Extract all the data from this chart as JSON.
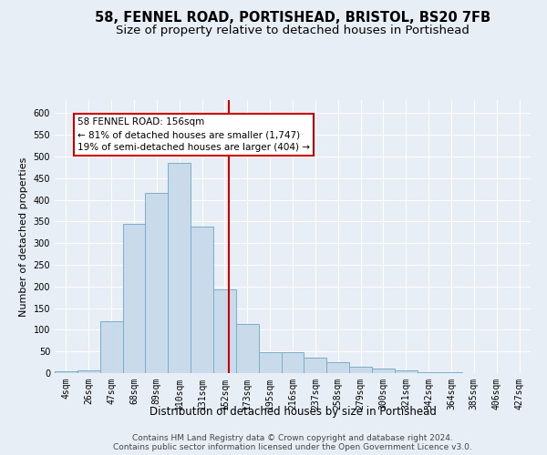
{
  "title1": "58, FENNEL ROAD, PORTISHEAD, BRISTOL, BS20 7FB",
  "title2": "Size of property relative to detached houses in Portishead",
  "xlabel": "Distribution of detached houses by size in Portishead",
  "ylabel": "Number of detached properties",
  "categories": [
    "4sqm",
    "26sqm",
    "47sqm",
    "68sqm",
    "89sqm",
    "110sqm",
    "131sqm",
    "152sqm",
    "173sqm",
    "195sqm",
    "216sqm",
    "237sqm",
    "258sqm",
    "279sqm",
    "300sqm",
    "321sqm",
    "342sqm",
    "364sqm",
    "385sqm",
    "406sqm",
    "427sqm"
  ],
  "values": [
    5,
    7,
    120,
    345,
    415,
    485,
    338,
    193,
    113,
    49,
    49,
    35,
    26,
    15,
    10,
    6,
    3,
    2,
    1,
    1,
    1
  ],
  "bar_color": "#c9daea",
  "bar_edge_color": "#7aafc8",
  "annotation_text": "58 FENNEL ROAD: 156sqm\n← 81% of detached houses are smaller (1,747)\n19% of semi-detached houses are larger (404) →",
  "annotation_box_color": "#ffffff",
  "annotation_border_color": "#cc0000",
  "vline_color": "#cc0000",
  "ylim": [
    0,
    630
  ],
  "yticks": [
    0,
    50,
    100,
    150,
    200,
    250,
    300,
    350,
    400,
    450,
    500,
    550,
    600
  ],
  "footer1": "Contains HM Land Registry data © Crown copyright and database right 2024.",
  "footer2": "Contains public sector information licensed under the Open Government Licence v3.0.",
  "bg_color": "#e8eef5",
  "plot_bg_color": "#e8eef5",
  "grid_color": "#ffffff",
  "title1_fontsize": 10.5,
  "title2_fontsize": 9.5,
  "xlabel_fontsize": 8.5,
  "ylabel_fontsize": 8,
  "tick_fontsize": 7,
  "footer_fontsize": 6.5,
  "annot_fontsize": 7.5
}
